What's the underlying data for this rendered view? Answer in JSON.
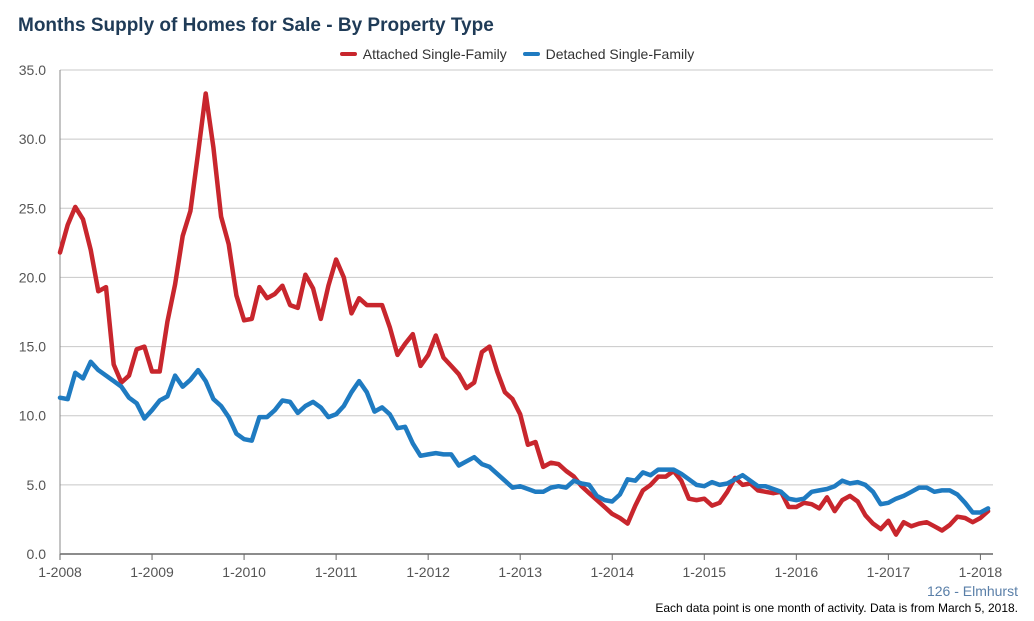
{
  "colors": {
    "attached": "#c8262d",
    "detached": "#1f7bc1",
    "title": "#1f3b57",
    "grid": "#c8c8c8"
  },
  "chart_data": {
    "type": "line",
    "title": "Months Supply of Homes for Sale - By Property Type",
    "xlabel": "",
    "ylabel": "",
    "ylim": [
      0,
      35
    ],
    "yticks": [
      "0.0",
      "5.0",
      "10.0",
      "15.0",
      "20.0",
      "25.0",
      "30.0",
      "35.0"
    ],
    "xticks": [
      "1-2008",
      "1-2009",
      "1-2010",
      "1-2011",
      "1-2012",
      "1-2013",
      "1-2014",
      "1-2015",
      "1-2016",
      "1-2017",
      "1-2018"
    ],
    "x_start": "1-2008",
    "x_frequency": "monthly",
    "grid": true,
    "legend_position": "top",
    "series": [
      {
        "name": "Attached Single-Family",
        "color": "#c8262d",
        "values": [
          21.8,
          23.8,
          25.1,
          24.2,
          22.0,
          19.0,
          19.3,
          13.7,
          12.4,
          12.9,
          14.8,
          15.0,
          13.2,
          13.2,
          16.8,
          19.5,
          23.0,
          24.8,
          29.0,
          33.3,
          29.4,
          24.4,
          22.4,
          18.7,
          16.9,
          17.0,
          19.3,
          18.5,
          18.8,
          19.4,
          18.0,
          17.8,
          20.2,
          19.2,
          17.0,
          19.4,
          21.3,
          20.0,
          17.4,
          18.5,
          18.0,
          18.0,
          18.0,
          16.4,
          14.4,
          15.2,
          15.9,
          13.6,
          14.4,
          15.8,
          14.2,
          13.6,
          13.0,
          12.0,
          12.4,
          14.6,
          15.0,
          13.2,
          11.7,
          11.2,
          10.1,
          7.9,
          8.1,
          6.3,
          6.6,
          6.5,
          6.0,
          5.6,
          4.9,
          4.4,
          3.9,
          3.4,
          2.9,
          2.6,
          2.2,
          3.5,
          4.6,
          5.0,
          5.6,
          5.6,
          6.0,
          5.3,
          4.0,
          3.9,
          4.0,
          3.5,
          3.7,
          4.5,
          5.5,
          5.0,
          5.1,
          4.6,
          4.5,
          4.4,
          4.5,
          3.4,
          3.4,
          3.7,
          3.6,
          3.3,
          4.1,
          3.1,
          3.9,
          4.2,
          3.8,
          2.8,
          2.2,
          1.8,
          2.4,
          1.4,
          2.3,
          2.0,
          2.2,
          2.3,
          2.0,
          1.7,
          2.1,
          2.7,
          2.6,
          2.3,
          2.6,
          3.1
        ]
      },
      {
        "name": "Detached Single-Family",
        "color": "#1f7bc1",
        "values": [
          11.3,
          11.2,
          13.1,
          12.7,
          13.9,
          13.3,
          12.9,
          12.5,
          12.1,
          11.3,
          10.9,
          9.8,
          10.4,
          11.1,
          11.4,
          12.9,
          12.1,
          12.6,
          13.3,
          12.5,
          11.2,
          10.7,
          9.9,
          8.7,
          8.3,
          8.2,
          9.9,
          9.9,
          10.4,
          11.1,
          11.0,
          10.2,
          10.7,
          11.0,
          10.6,
          9.9,
          10.1,
          10.7,
          11.7,
          12.5,
          11.7,
          10.3,
          10.6,
          10.1,
          9.1,
          9.2,
          8.0,
          7.1,
          7.2,
          7.3,
          7.2,
          7.2,
          6.4,
          6.7,
          7.0,
          6.5,
          6.3,
          5.8,
          5.3,
          4.8,
          4.9,
          4.7,
          4.5,
          4.5,
          4.8,
          4.9,
          4.8,
          5.3,
          5.1,
          5.0,
          4.2,
          3.9,
          3.8,
          4.3,
          5.4,
          5.3,
          5.9,
          5.7,
          6.1,
          6.1,
          6.1,
          5.8,
          5.4,
          5.0,
          4.9,
          5.2,
          5.0,
          5.1,
          5.4,
          5.7,
          5.3,
          4.9,
          4.9,
          4.7,
          4.5,
          4.0,
          3.9,
          4.0,
          4.5,
          4.6,
          4.7,
          4.9,
          5.3,
          5.1,
          5.2,
          5.0,
          4.5,
          3.6,
          3.7,
          4.0,
          4.2,
          4.5,
          4.8,
          4.8,
          4.5,
          4.6,
          4.6,
          4.3,
          3.7,
          3.0,
          3.0,
          3.3
        ]
      }
    ]
  },
  "footer": {
    "place": "126 - Elmhurst",
    "note": "Each data point is one month of activity. Data is from March 5, 2018."
  }
}
